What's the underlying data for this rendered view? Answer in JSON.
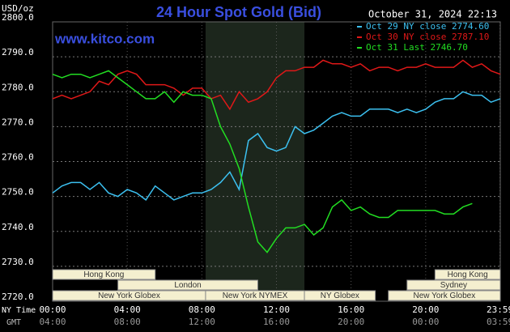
{
  "chart_data": {
    "type": "line",
    "title": "24 Hour Spot Gold (Bid)",
    "source": "www.kitco.com",
    "timestamp": "October 31, 2024 22:13",
    "y_axis_label": "USD/oz",
    "x_axis_label": "NY Time",
    "x2_axis_label": "GMT",
    "xlim": [
      0,
      24
    ],
    "xticks": [
      {
        "value": 0,
        "label": "00:00"
      },
      {
        "value": 4,
        "label": "04:00"
      },
      {
        "value": 8,
        "label": "08:00"
      },
      {
        "value": 12,
        "label": "12:00"
      },
      {
        "value": 16,
        "label": "16:00"
      },
      {
        "value": 20,
        "label": "20:00"
      },
      {
        "value": 23.983,
        "label": "23:59"
      }
    ],
    "x2ticks": [
      {
        "value": 0,
        "label": "04:00"
      },
      {
        "value": 4,
        "label": "08:00"
      },
      {
        "value": 8,
        "label": "12:00"
      },
      {
        "value": 12,
        "label": "16:00"
      },
      {
        "value": 16,
        "label": "20:00"
      },
      {
        "value": 20,
        "label": "00:00"
      },
      {
        "value": 23.983,
        "label": "03:59"
      }
    ],
    "ylim": [
      2720,
      2800
    ],
    "yticks": [
      {
        "value": 2720,
        "label": "2720.0"
      },
      {
        "value": 2730,
        "label": "2730.0"
      },
      {
        "value": 2740,
        "label": "2740.0"
      },
      {
        "value": 2750,
        "label": "2750.0"
      },
      {
        "value": 2760,
        "label": "2760.0"
      },
      {
        "value": 2770,
        "label": "2770.0"
      },
      {
        "value": 2780,
        "label": "2780.0"
      },
      {
        "value": 2790,
        "label": "2790.0"
      },
      {
        "value": 2800,
        "label": "2800.0"
      }
    ],
    "grid": true,
    "x": [
      0,
      0.5,
      1,
      1.5,
      2,
      2.5,
      3,
      3.5,
      4,
      4.5,
      5,
      5.5,
      6,
      6.5,
      7,
      7.5,
      8,
      8.5,
      9,
      9.5,
      10,
      10.5,
      11,
      11.5,
      12,
      12.5,
      13,
      13.5,
      14,
      14.5,
      15,
      15.5,
      16,
      16.5,
      17,
      17.5,
      18,
      18.5,
      19,
      19.5,
      20,
      20.5,
      21,
      21.5,
      22,
      22.5,
      23,
      23.5,
      24
    ],
    "series": [
      {
        "name": "Oct 29 NY close 2774.60",
        "color": "#3cc0f0",
        "values": [
          2751,
          2753,
          2754,
          2754,
          2752,
          2754,
          2751,
          2750,
          2752,
          2751,
          2749,
          2753,
          2751,
          2749,
          2750,
          2751,
          2751,
          2752,
          2754,
          2757,
          2752,
          2766,
          2768,
          2764,
          2763,
          2764,
          2770,
          2768,
          2769,
          2771,
          2773,
          2774,
          2773,
          2773,
          2775,
          2775,
          2775,
          2774,
          2775,
          2774,
          2775,
          2777,
          2778,
          2778,
          2780,
          2779,
          2779,
          2777,
          2778
        ]
      },
      {
        "name": "Oct 30 NY close 2787.10",
        "color": "#e01818",
        "values": [
          2778,
          2779,
          2778,
          2779,
          2780,
          2783,
          2782,
          2785,
          2786,
          2785,
          2782,
          2782,
          2782,
          2781,
          2779,
          2781,
          2781,
          2778,
          2779,
          2775,
          2780,
          2777,
          2778,
          2780,
          2784,
          2786,
          2786,
          2787,
          2787,
          2789,
          2788,
          2788,
          2787,
          2788,
          2786,
          2787,
          2787,
          2786,
          2787,
          2787,
          2788,
          2787,
          2787,
          2787,
          2789,
          2787,
          2788,
          2786,
          2785
        ]
      },
      {
        "name": "Oct 31 Last 2746.70",
        "color": "#22dd22",
        "values": [
          2785,
          2784,
          2785,
          2785,
          2784,
          2785,
          2786,
          2784,
          2782,
          2780,
          2778,
          2778,
          2780,
          2777,
          2780,
          2779,
          2779,
          2778,
          2770,
          2765,
          2758,
          2747,
          2737,
          2734,
          2738,
          2741,
          2741,
          2742,
          2739,
          2741,
          2747,
          2749,
          2746,
          2747,
          2745,
          2744,
          2744,
          2746,
          2746,
          2746,
          2746,
          2746,
          2745,
          2745,
          2747,
          2748,
          null,
          null,
          null
        ]
      }
    ],
    "session_rows": [
      [
        {
          "label": "Hong Kong",
          "start": 0,
          "end": 5.5
        },
        {
          "label": "Hong Kong",
          "start": 20.5,
          "end": 24
        }
      ],
      [
        {
          "label": "London",
          "start": 3.5,
          "end": 11
        },
        {
          "label": "Sydney",
          "start": 19,
          "end": 24
        }
      ],
      [
        {
          "label": "New York Globex",
          "start": 0,
          "end": 8.2
        },
        {
          "label": "New York NYMEX",
          "start": 8.2,
          "end": 13.5
        },
        {
          "label": "NY Globex",
          "start": 13.5,
          "end": 17.3
        },
        {
          "label": "New York Globex",
          "start": 18,
          "end": 24
        }
      ]
    ]
  }
}
